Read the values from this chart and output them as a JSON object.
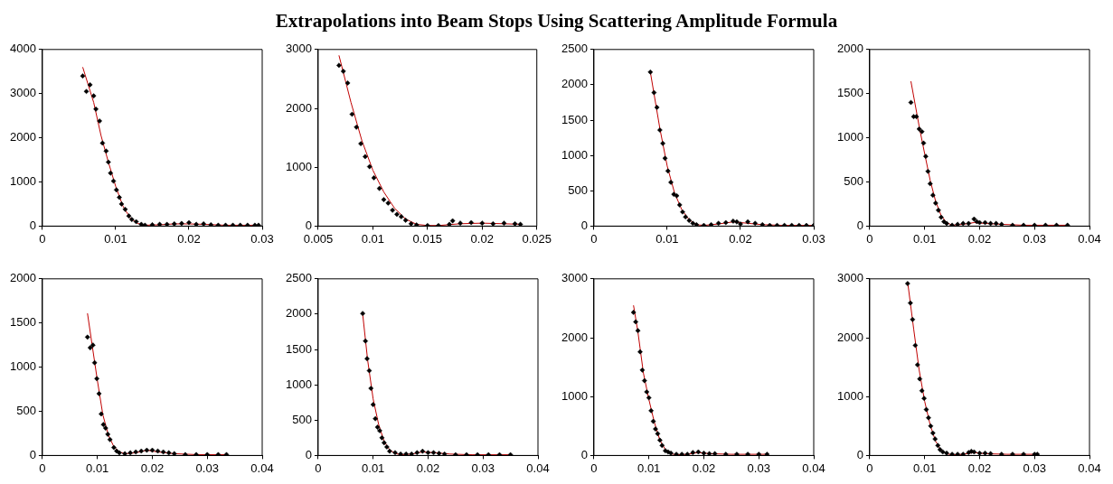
{
  "chart_data": [
    {
      "type": "scatter",
      "title": "Extrapolations into Beam Stops Using Scattering Amplitude Formula",
      "xlim": [
        0,
        0.03
      ],
      "xticks": [
        0,
        0.01,
        0.02,
        0.03
      ],
      "ylim": [
        0,
        4000
      ],
      "yticks": [
        0,
        1000,
        2000,
        3000,
        4000
      ],
      "grid": false,
      "legend": false,
      "marker": "diamond",
      "series": [
        {
          "type": "scatter",
          "color": "#000000",
          "x": [
            0.0055,
            0.006,
            0.0065,
            0.007,
            0.0073,
            0.0078,
            0.0082,
            0.0087,
            0.009,
            0.0093,
            0.0097,
            0.0101,
            0.0105,
            0.0108,
            0.0113,
            0.0118,
            0.0122,
            0.0128,
            0.0135,
            0.014,
            0.015,
            0.016,
            0.017,
            0.018,
            0.019,
            0.02,
            0.021,
            0.022,
            0.023,
            0.024,
            0.025,
            0.026,
            0.027,
            0.028,
            0.029,
            0.0295
          ],
          "values": [
            3400,
            3050,
            3200,
            2950,
            2650,
            2380,
            1880,
            1700,
            1450,
            1200,
            1020,
            820,
            650,
            500,
            380,
            230,
            150,
            100,
            40,
            20,
            30,
            40,
            40,
            50,
            60,
            80,
            40,
            50,
            30,
            20,
            20,
            20,
            20,
            20,
            20,
            20
          ]
        },
        {
          "type": "line",
          "color": "#c00000",
          "marker": "none",
          "x": [
            0.0055,
            0.007,
            0.008,
            0.009,
            0.01,
            0.011,
            0.012,
            0.013,
            0.014,
            0.016,
            0.018,
            0.02,
            0.022,
            0.025,
            0.0295
          ],
          "values": [
            3600,
            2800,
            2050,
            1450,
            900,
            450,
            180,
            60,
            20,
            30,
            50,
            50,
            40,
            20,
            20
          ]
        }
      ]
    },
    {
      "type": "scatter",
      "xlim": [
        0.005,
        0.025
      ],
      "xticks": [
        0.005,
        0.01,
        0.015,
        0.02,
        0.025
      ],
      "ylim": [
        0,
        3000
      ],
      "yticks": [
        0,
        1000,
        2000,
        3000
      ],
      "grid": false,
      "legend": false,
      "marker": "diamond",
      "series": [
        {
          "type": "scatter",
          "color": "#000000",
          "x": [
            0.0069,
            0.0073,
            0.0077,
            0.0081,
            0.0085,
            0.0089,
            0.0093,
            0.0097,
            0.0101,
            0.0106,
            0.011,
            0.0114,
            0.0118,
            0.0122,
            0.0126,
            0.013,
            0.0135,
            0.014,
            0.015,
            0.016,
            0.017,
            0.0173,
            0.018,
            0.019,
            0.02,
            0.021,
            0.022,
            0.023,
            0.0235
          ],
          "values": [
            2730,
            2630,
            2430,
            1900,
            1680,
            1400,
            1180,
            1010,
            820,
            640,
            450,
            390,
            270,
            200,
            160,
            100,
            40,
            20,
            10,
            10,
            30,
            90,
            50,
            60,
            50,
            40,
            50,
            40,
            30
          ]
        },
        {
          "type": "line",
          "color": "#c00000",
          "marker": "none",
          "x": [
            0.0069,
            0.008,
            0.009,
            0.01,
            0.011,
            0.012,
            0.013,
            0.014,
            0.015,
            0.016,
            0.018,
            0.02,
            0.022,
            0.0235
          ],
          "values": [
            2900,
            2100,
            1450,
            950,
            580,
            300,
            120,
            30,
            10,
            10,
            40,
            50,
            40,
            30
          ]
        }
      ]
    },
    {
      "type": "scatter",
      "xlim": [
        0,
        0.03
      ],
      "xticks": [
        0,
        0.01,
        0.02,
        0.03
      ],
      "ylim": [
        0,
        2500
      ],
      "yticks": [
        0,
        500,
        1000,
        1500,
        2000,
        2500
      ],
      "grid": false,
      "legend": false,
      "marker": "diamond",
      "series": [
        {
          "type": "scatter",
          "color": "#000000",
          "x": [
            0.0077,
            0.0082,
            0.0086,
            0.009,
            0.0094,
            0.0097,
            0.0101,
            0.0105,
            0.0109,
            0.0113,
            0.0117,
            0.0121,
            0.0125,
            0.013,
            0.0135,
            0.014,
            0.015,
            0.016,
            0.017,
            0.018,
            0.019,
            0.0195,
            0.02,
            0.021,
            0.022,
            0.023,
            0.024,
            0.025,
            0.026,
            0.027,
            0.028,
            0.029,
            0.03
          ],
          "values": [
            2180,
            1890,
            1680,
            1360,
            1170,
            960,
            780,
            620,
            450,
            430,
            300,
            200,
            130,
            80,
            40,
            20,
            10,
            20,
            40,
            50,
            70,
            60,
            30,
            60,
            40,
            20,
            10,
            10,
            10,
            10,
            10,
            10,
            10
          ]
        },
        {
          "type": "line",
          "color": "#c00000",
          "marker": "none",
          "x": [
            0.0077,
            0.009,
            0.01,
            0.011,
            0.012,
            0.013,
            0.014,
            0.015,
            0.017,
            0.019,
            0.021,
            0.023,
            0.026,
            0.03
          ],
          "values": [
            2180,
            1380,
            850,
            470,
            230,
            90,
            20,
            10,
            30,
            60,
            40,
            20,
            10,
            10
          ]
        }
      ]
    },
    {
      "type": "scatter",
      "xlim": [
        0,
        0.04
      ],
      "xticks": [
        0,
        0.01,
        0.02,
        0.03,
        0.04
      ],
      "ylim": [
        0,
        2000
      ],
      "yticks": [
        0,
        500,
        1000,
        1500,
        2000
      ],
      "grid": false,
      "legend": false,
      "marker": "diamond",
      "series": [
        {
          "type": "scatter",
          "color": "#000000",
          "x": [
            0.0075,
            0.008,
            0.0085,
            0.009,
            0.0095,
            0.0098,
            0.0102,
            0.0106,
            0.011,
            0.0115,
            0.012,
            0.0125,
            0.013,
            0.0135,
            0.014,
            0.015,
            0.016,
            0.017,
            0.018,
            0.019,
            0.0195,
            0.02,
            0.021,
            0.022,
            0.023,
            0.024,
            0.026,
            0.028,
            0.03,
            0.032,
            0.034,
            0.036
          ],
          "values": [
            1400,
            1240,
            1240,
            1100,
            1070,
            940,
            790,
            620,
            480,
            350,
            260,
            180,
            100,
            50,
            30,
            10,
            20,
            30,
            30,
            80,
            50,
            40,
            40,
            30,
            30,
            20,
            10,
            10,
            10,
            10,
            10,
            10
          ]
        },
        {
          "type": "line",
          "color": "#c00000",
          "marker": "none",
          "x": [
            0.0075,
            0.009,
            0.01,
            0.011,
            0.012,
            0.013,
            0.014,
            0.015,
            0.017,
            0.019,
            0.021,
            0.024,
            0.028,
            0.036
          ],
          "values": [
            1640,
            1130,
            820,
            520,
            280,
            120,
            40,
            10,
            20,
            40,
            30,
            20,
            10,
            10
          ]
        }
      ]
    },
    {
      "type": "scatter",
      "xlim": [
        0,
        0.04
      ],
      "xticks": [
        0,
        0.01,
        0.02,
        0.03,
        0.04
      ],
      "ylim": [
        0,
        2000
      ],
      "yticks": [
        0,
        500,
        1000,
        1500,
        2000
      ],
      "grid": false,
      "legend": false,
      "marker": "diamond",
      "series": [
        {
          "type": "scatter",
          "color": "#000000",
          "x": [
            0.0082,
            0.0087,
            0.0092,
            0.0095,
            0.0099,
            0.0103,
            0.0107,
            0.0111,
            0.0115,
            0.0119,
            0.0123,
            0.013,
            0.0135,
            0.014,
            0.015,
            0.016,
            0.017,
            0.018,
            0.019,
            0.02,
            0.021,
            0.022,
            0.023,
            0.024,
            0.026,
            0.028,
            0.03,
            0.032,
            0.0335
          ],
          "values": [
            1340,
            1220,
            1250,
            1050,
            870,
            700,
            470,
            350,
            310,
            240,
            180,
            90,
            50,
            30,
            20,
            30,
            40,
            50,
            60,
            60,
            50,
            40,
            30,
            20,
            10,
            10,
            10,
            10,
            10
          ]
        },
        {
          "type": "line",
          "color": "#c00000",
          "marker": "none",
          "x": [
            0.0082,
            0.009,
            0.01,
            0.011,
            0.012,
            0.013,
            0.014,
            0.015,
            0.017,
            0.019,
            0.021,
            0.024,
            0.028,
            0.0335
          ],
          "values": [
            1610,
            1270,
            850,
            460,
            230,
            100,
            40,
            20,
            30,
            60,
            40,
            20,
            10,
            10
          ]
        }
      ]
    },
    {
      "type": "scatter",
      "xlim": [
        0,
        0.04
      ],
      "xticks": [
        0,
        0.01,
        0.02,
        0.03,
        0.04
      ],
      "ylim": [
        0,
        2500
      ],
      "yticks": [
        0,
        500,
        1000,
        1500,
        2000,
        2500
      ],
      "grid": false,
      "legend": false,
      "marker": "diamond",
      "series": [
        {
          "type": "scatter",
          "color": "#000000",
          "x": [
            0.0081,
            0.0086,
            0.0089,
            0.0093,
            0.0096,
            0.01,
            0.0104,
            0.0108,
            0.0112,
            0.0116,
            0.012,
            0.0125,
            0.013,
            0.014,
            0.015,
            0.016,
            0.017,
            0.018,
            0.019,
            0.02,
            0.021,
            0.022,
            0.023,
            0.025,
            0.027,
            0.029,
            0.031,
            0.033,
            0.035
          ],
          "values": [
            2010,
            1620,
            1370,
            1200,
            950,
            720,
            520,
            400,
            350,
            250,
            180,
            120,
            60,
            40,
            20,
            20,
            20,
            40,
            60,
            40,
            40,
            30,
            20,
            10,
            10,
            10,
            10,
            10,
            10
          ]
        },
        {
          "type": "line",
          "color": "#c00000",
          "marker": "none",
          "x": [
            0.0081,
            0.009,
            0.01,
            0.011,
            0.012,
            0.013,
            0.014,
            0.015,
            0.017,
            0.019,
            0.021,
            0.024,
            0.028,
            0.035
          ],
          "values": [
            2000,
            1350,
            800,
            440,
            200,
            80,
            30,
            10,
            20,
            50,
            40,
            20,
            10,
            10
          ]
        }
      ]
    },
    {
      "type": "scatter",
      "xlim": [
        0,
        0.04
      ],
      "xticks": [
        0,
        0.01,
        0.02,
        0.03,
        0.04
      ],
      "ylim": [
        0,
        3000
      ],
      "yticks": [
        0,
        1000,
        2000,
        3000
      ],
      "grid": false,
      "legend": false,
      "marker": "diamond",
      "series": [
        {
          "type": "scatter",
          "color": "#000000",
          "x": [
            0.0072,
            0.0076,
            0.008,
            0.0084,
            0.0088,
            0.0092,
            0.0096,
            0.01,
            0.0104,
            0.0108,
            0.0112,
            0.0116,
            0.012,
            0.0124,
            0.013,
            0.0135,
            0.014,
            0.015,
            0.016,
            0.017,
            0.018,
            0.019,
            0.02,
            0.021,
            0.022,
            0.024,
            0.026,
            0.028,
            0.03,
            0.0315
          ],
          "values": [
            2430,
            2270,
            2120,
            1760,
            1450,
            1270,
            1080,
            980,
            760,
            580,
            450,
            370,
            260,
            170,
            80,
            60,
            40,
            20,
            20,
            20,
            50,
            60,
            40,
            30,
            30,
            20,
            20,
            20,
            20,
            20
          ]
        },
        {
          "type": "line",
          "color": "#c00000",
          "marker": "none",
          "x": [
            0.0072,
            0.008,
            0.009,
            0.01,
            0.011,
            0.012,
            0.013,
            0.014,
            0.015,
            0.017,
            0.019,
            0.021,
            0.025,
            0.0315
          ],
          "values": [
            2550,
            2100,
            1400,
            950,
            560,
            260,
            100,
            30,
            10,
            20,
            50,
            30,
            20,
            20
          ]
        }
      ]
    },
    {
      "type": "scatter",
      "xlim": [
        0,
        0.04
      ],
      "xticks": [
        0,
        0.01,
        0.02,
        0.03,
        0.04
      ],
      "ylim": [
        0,
        3000
      ],
      "yticks": [
        0,
        1000,
        2000,
        3000
      ],
      "grid": false,
      "legend": false,
      "marker": "diamond",
      "series": [
        {
          "type": "scatter",
          "color": "#000000",
          "x": [
            0.0069,
            0.0074,
            0.0078,
            0.0083,
            0.0087,
            0.0091,
            0.0095,
            0.0099,
            0.0103,
            0.0107,
            0.0111,
            0.0115,
            0.0119,
            0.0124,
            0.0128,
            0.0133,
            0.014,
            0.015,
            0.016,
            0.017,
            0.018,
            0.0185,
            0.019,
            0.02,
            0.021,
            0.022,
            0.024,
            0.026,
            0.028,
            0.03,
            0.0305
          ],
          "values": [
            2920,
            2590,
            2310,
            1870,
            1540,
            1300,
            1100,
            970,
            780,
            640,
            500,
            380,
            280,
            170,
            100,
            60,
            40,
            20,
            20,
            20,
            50,
            70,
            60,
            40,
            40,
            30,
            20,
            20,
            20,
            20,
            20
          ]
        },
        {
          "type": "line",
          "color": "#c00000",
          "marker": "none",
          "x": [
            0.0069,
            0.008,
            0.009,
            0.01,
            0.011,
            0.012,
            0.013,
            0.014,
            0.015,
            0.017,
            0.019,
            0.021,
            0.025,
            0.0305
          ],
          "values": [
            2950,
            2150,
            1450,
            920,
            520,
            240,
            90,
            30,
            10,
            20,
            50,
            30,
            20,
            20
          ]
        }
      ]
    }
  ]
}
